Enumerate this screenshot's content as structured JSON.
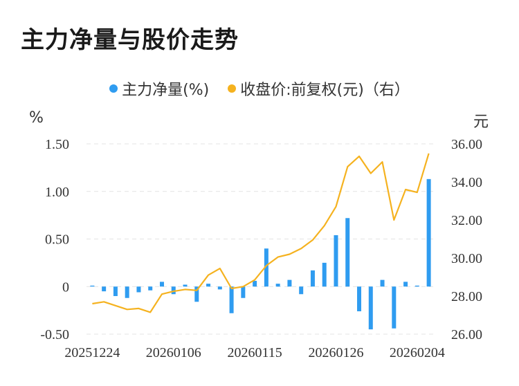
{
  "title": "主力净量与股价走势",
  "legend": [
    {
      "label": "主力净量(%)",
      "color": "#2f9cf0"
    },
    {
      "label": "收盘价:前复权(元)（右）",
      "color": "#f5b21f"
    }
  ],
  "chart_data": {
    "type": "bar+line",
    "left_unit": "%",
    "right_unit": "元",
    "left_ylim": [
      -0.5,
      1.5
    ],
    "left_ticks": [
      "1.50",
      "1.00",
      "0.50",
      "0",
      "-0.50"
    ],
    "right_ylim": [
      26,
      36
    ],
    "right_ticks": [
      "36.00",
      "34.00",
      "32.00",
      "30.00",
      "28.00",
      "26.00"
    ],
    "x_tick_labels": [
      "20251224",
      "20260106",
      "20260115",
      "20260126",
      "20260204"
    ],
    "x_tick_index": [
      0,
      7,
      14,
      21,
      28
    ],
    "series": [
      {
        "name": "主力净量(%)",
        "type": "bar",
        "values": [
          0.01,
          -0.05,
          -0.1,
          -0.12,
          -0.06,
          -0.04,
          0.05,
          -0.08,
          0.02,
          -0.16,
          0.03,
          -0.03,
          -0.28,
          -0.12,
          0.06,
          0.4,
          0.03,
          0.07,
          -0.08,
          0.17,
          0.25,
          0.54,
          0.72,
          -0.26,
          -0.45,
          0.07,
          -0.44,
          0.05,
          0.01,
          1.13
        ]
      },
      {
        "name": "收盘价:前复权(元)（右）",
        "type": "line",
        "values": [
          27.6,
          27.7,
          27.5,
          27.3,
          27.35,
          27.15,
          28.1,
          28.25,
          28.35,
          28.3,
          29.1,
          29.45,
          28.4,
          28.5,
          28.85,
          29.6,
          30.05,
          30.2,
          30.5,
          30.95,
          31.7,
          32.7,
          34.8,
          35.35,
          34.45,
          35.05,
          32.0,
          33.6,
          33.45,
          35.5
        ]
      }
    ]
  }
}
